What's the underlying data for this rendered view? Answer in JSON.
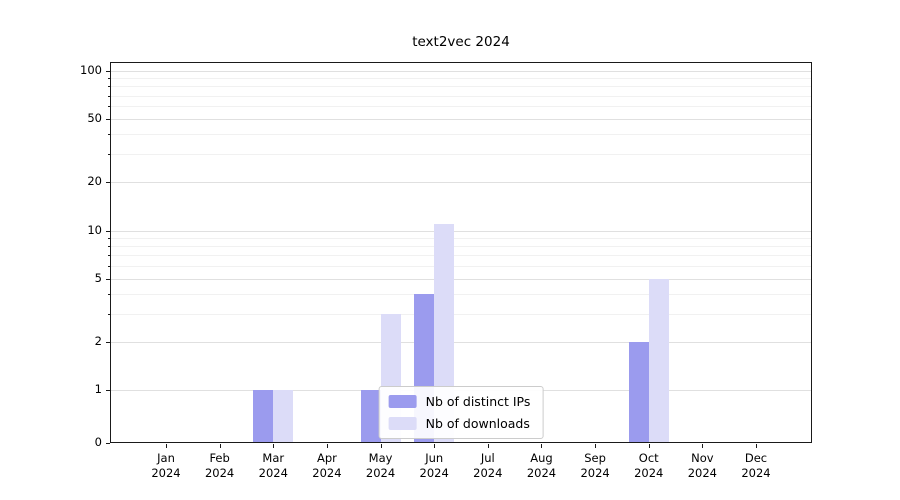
{
  "chart_data": {
    "type": "bar",
    "title": "text2vec 2024",
    "categories": [
      "Jan 2024",
      "Feb 2024",
      "Mar 2024",
      "Apr 2024",
      "May 2024",
      "Jun 2024",
      "Jul 2024",
      "Aug 2024",
      "Sep 2024",
      "Oct 2024",
      "Nov 2024",
      "Dec 2024"
    ],
    "series": [
      {
        "name": "Nb of distinct IPs",
        "color": "#9b9bee",
        "values": [
          0,
          0,
          1,
          0,
          1,
          4,
          0,
          0,
          0,
          2,
          0,
          0
        ]
      },
      {
        "name": "Nb of downloads",
        "color": "#dcdcf8",
        "values": [
          0,
          0,
          1,
          0,
          3,
          11,
          0,
          0,
          0,
          5,
          0,
          0
        ]
      }
    ],
    "y_ticks": [
      0,
      1,
      2,
      5,
      10,
      20,
      50,
      100
    ],
    "y_minor_ticks": [
      3,
      4,
      6,
      7,
      8,
      9,
      30,
      40,
      60,
      70,
      80,
      90
    ],
    "ylim": [
      0,
      100
    ],
    "scale": "symlog",
    "grid": true,
    "legend_position": "lower center"
  }
}
